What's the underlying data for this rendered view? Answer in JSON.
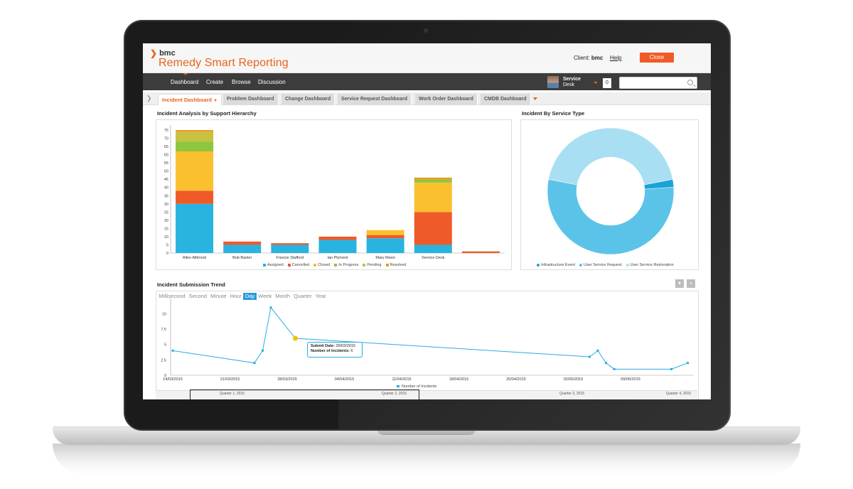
{
  "header": {
    "brand_logo": "bmc",
    "product_name": "Remedy Smart Reporting",
    "client_label": "Client:",
    "client_value": "bmc",
    "help_label": "Help",
    "close_label": "Close"
  },
  "nav": {
    "items": [
      "Dashboard",
      "Create",
      "Browse",
      "Discussion"
    ],
    "user_line1": "Service",
    "user_line2": "Desk",
    "notification_count": "0",
    "search_placeholder": ""
  },
  "tabs": [
    "Incident Dashboard",
    "Problem Dashboard",
    "Change Dashboard",
    "Service Request Dashboard",
    "Work Order Dashboard",
    "CMDB Dashboard"
  ],
  "panels": {
    "analysis_title": "Incident Analysis by Support Hierarchy",
    "service_type_title": "Incident By Service Type",
    "trend_title": "Incident Submission Trend"
  },
  "colors": {
    "accent": "#e8631c",
    "assigned": "#29b3e0",
    "cancelled": "#f05a28",
    "closed": "#fbc02d",
    "in_progress": "#8dc63f",
    "pending": "#c5c33f",
    "resolved": "#f7941d"
  },
  "chart_data": [
    {
      "type": "bar",
      "stacked": true,
      "title": "Incident Analysis by Support Hierarchy",
      "categories": [
        "Allen Allbrook",
        "Bob Baxter",
        "Francie Stafford",
        "Ian Plyment",
        "Mary Mann",
        "Service Desk",
        ""
      ],
      "ylim": [
        0,
        75
      ],
      "yticks": [
        0,
        5,
        10,
        15,
        20,
        25,
        30,
        35,
        40,
        45,
        50,
        55,
        60,
        65,
        70,
        75
      ],
      "series": [
        {
          "name": "Assigned",
          "color": "#29b3e0",
          "values": [
            30,
            5,
            5,
            8,
            9,
            5,
            0
          ]
        },
        {
          "name": "Cancelled",
          "color": "#f05a28",
          "values": [
            8,
            2,
            1,
            2,
            2,
            20,
            1
          ]
        },
        {
          "name": "Closed",
          "color": "#fbc02d",
          "values": [
            24,
            0,
            0,
            0,
            3,
            18,
            0
          ]
        },
        {
          "name": "In Progress",
          "color": "#8dc63f",
          "values": [
            6,
            0,
            0,
            0,
            0,
            2,
            0
          ]
        },
        {
          "name": "Pending",
          "color": "#c5c33f",
          "values": [
            6,
            0,
            0,
            0,
            0,
            0,
            0
          ]
        },
        {
          "name": "Resolved",
          "color": "#f7941d",
          "values": [
            1,
            0,
            0,
            0,
            0,
            1,
            0
          ]
        }
      ],
      "legend_position": "bottom"
    },
    {
      "type": "pie",
      "donut": true,
      "title": "Incident By Service Type",
      "slices": [
        {
          "name": "Infrastructure Event",
          "color": "#1aa3d9",
          "value": 2
        },
        {
          "name": "User Service Request",
          "color": "#5bc3e8",
          "value": 54
        },
        {
          "name": "User Service Restoration",
          "color": "#a9dff2",
          "value": 44
        }
      ],
      "legend_position": "bottom"
    },
    {
      "type": "line",
      "title": "Incident Submission Trend",
      "granularities": [
        "Millisecond",
        "Second",
        "Minute",
        "Hour",
        "Day",
        "Week",
        "Month",
        "Quarter",
        "Year"
      ],
      "active_granularity": "Day",
      "x_ticks": [
        "14/03/2015",
        "21/03/2015",
        "28/03/2015",
        "04/04/2015",
        "11/04/2015",
        "18/04/2015",
        "25/04/2015",
        "02/05/2015",
        "09/05/2015"
      ],
      "ylim": [
        0,
        12
      ],
      "yticks": [
        0,
        2.5,
        5,
        7.5,
        10
      ],
      "series": [
        {
          "name": "Number of Incidents",
          "color": "#29abe2",
          "x": [
            "14/03/2015",
            "24/03/2015",
            "25/03/2015",
            "26/03/2015",
            "29/03/2015",
            "04/05/2015",
            "05/05/2015",
            "06/05/2015",
            "07/05/2015",
            "14/05/2015",
            "16/05/2015"
          ],
          "y": [
            4,
            2,
            4,
            11,
            6,
            3,
            4,
            2,
            1,
            1,
            2
          ]
        }
      ],
      "tooltip": {
        "date_label": "Submit Date:",
        "date_value": "29/03/2015",
        "count_label": "Number of Incidents:",
        "count_value": "6"
      },
      "quarters": [
        "Quarter 1, 2015",
        "Quarter 2, 2015",
        "Quarter 3, 2015",
        "Quarter 4, 2015"
      ]
    }
  ]
}
